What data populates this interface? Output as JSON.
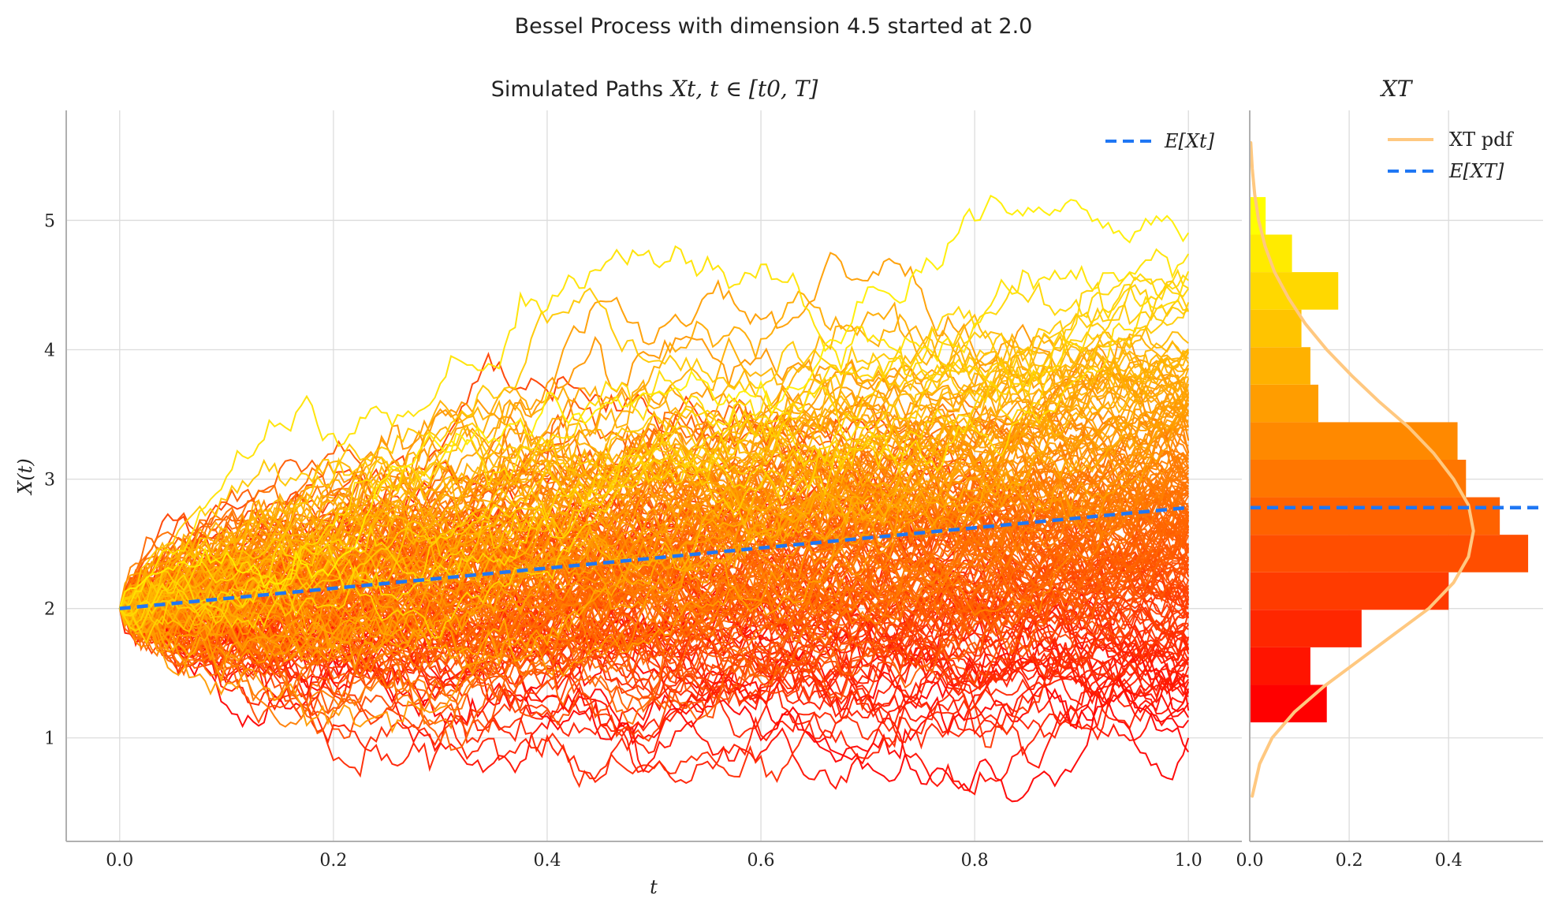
{
  "suptitle": "Bessel Process with dimension 4.5 started at 2.0",
  "chart_data": [
    {
      "panel": "paths",
      "type": "line",
      "title": "Simulated Paths X_t, t ∈ [t_0, T]",
      "title_text": "Simulated Paths",
      "title_math": "Xt, t ∈ [t0, T]",
      "xlabel": "t",
      "ylabel": "X(t)",
      "xlim": [
        -0.05,
        1.05
      ],
      "ylim": [
        0.2,
        5.85
      ],
      "xticks": [
        "0.0",
        "0.2",
        "0.4",
        "0.6",
        "0.8",
        "1.0"
      ],
      "yticks": [
        "1",
        "2",
        "3",
        "4",
        "5"
      ],
      "grid": true,
      "legend": {
        "placement": "top-right",
        "entries": [
          {
            "label": "E[X_t]",
            "display": "E[Xt]"
          }
        ]
      },
      "process": {
        "dimension": 4.5,
        "x0": 2.0,
        "t0": 0.0,
        "T": 1.0
      },
      "paths": {
        "count": 200,
        "steps": 200,
        "colormap": "autumn (red → yellow)",
        "seed": 7
      },
      "mean_line": {
        "name": "E[X_t]",
        "x": [
          0.0,
          1.0
        ],
        "y": [
          2.0,
          2.78
        ],
        "color": "#1f77f4",
        "style": "dashed"
      },
      "colors": {
        "low": "#ff0000",
        "high": "#ffff00"
      }
    },
    {
      "panel": "terminal",
      "type": "bar",
      "orientation": "horizontal",
      "title": "X_T",
      "title_display": "XT",
      "xlim": [
        0.0,
        0.59
      ],
      "xticks": [
        "0.0",
        "0.2",
        "0.4"
      ],
      "bins": [
        {
          "from": 1.12,
          "to": 1.41,
          "density": 0.155
        },
        {
          "from": 1.41,
          "to": 1.7,
          "density": 0.122
        },
        {
          "from": 1.7,
          "to": 1.99,
          "density": 0.225
        },
        {
          "from": 1.99,
          "to": 2.28,
          "density": 0.4
        },
        {
          "from": 2.28,
          "to": 2.57,
          "density": 0.56
        },
        {
          "from": 2.57,
          "to": 2.86,
          "density": 0.503
        },
        {
          "from": 2.86,
          "to": 3.15,
          "density": 0.435
        },
        {
          "from": 3.15,
          "to": 3.44,
          "density": 0.418
        },
        {
          "from": 3.44,
          "to": 3.73,
          "density": 0.138
        },
        {
          "from": 3.73,
          "to": 4.02,
          "density": 0.122
        },
        {
          "from": 4.02,
          "to": 4.31,
          "density": 0.104
        },
        {
          "from": 4.31,
          "to": 4.6,
          "density": 0.178
        },
        {
          "from": 4.6,
          "to": 4.89,
          "density": 0.085
        },
        {
          "from": 4.89,
          "to": 5.18,
          "density": 0.032
        }
      ],
      "pdf": {
        "name": "X_T pdf",
        "display": "XT pdf",
        "color": "#ffc880",
        "y": [
          0.55,
          0.8,
          1.0,
          1.2,
          1.4,
          1.6,
          1.8,
          2.0,
          2.2,
          2.4,
          2.6,
          2.8,
          3.0,
          3.2,
          3.4,
          3.6,
          3.8,
          4.0,
          4.2,
          4.4,
          4.6,
          4.8,
          5.0,
          5.2,
          5.4,
          5.6
        ],
        "density": [
          0.005,
          0.02,
          0.045,
          0.09,
          0.15,
          0.22,
          0.29,
          0.36,
          0.41,
          0.44,
          0.45,
          0.44,
          0.41,
          0.37,
          0.32,
          0.26,
          0.205,
          0.155,
          0.112,
          0.078,
          0.05,
          0.031,
          0.018,
          0.01,
          0.005,
          0.002
        ]
      },
      "mean_line": {
        "name": "E[X_T]",
        "display": "E[XT]",
        "y": 2.78,
        "color": "#1f77f4",
        "style": "dashed"
      },
      "legend": {
        "placement": "top-right",
        "entries": [
          {
            "label": "X_T pdf",
            "display": "XT pdf"
          },
          {
            "label": "E[X_T]",
            "display": "E[XT]"
          }
        ]
      }
    }
  ]
}
